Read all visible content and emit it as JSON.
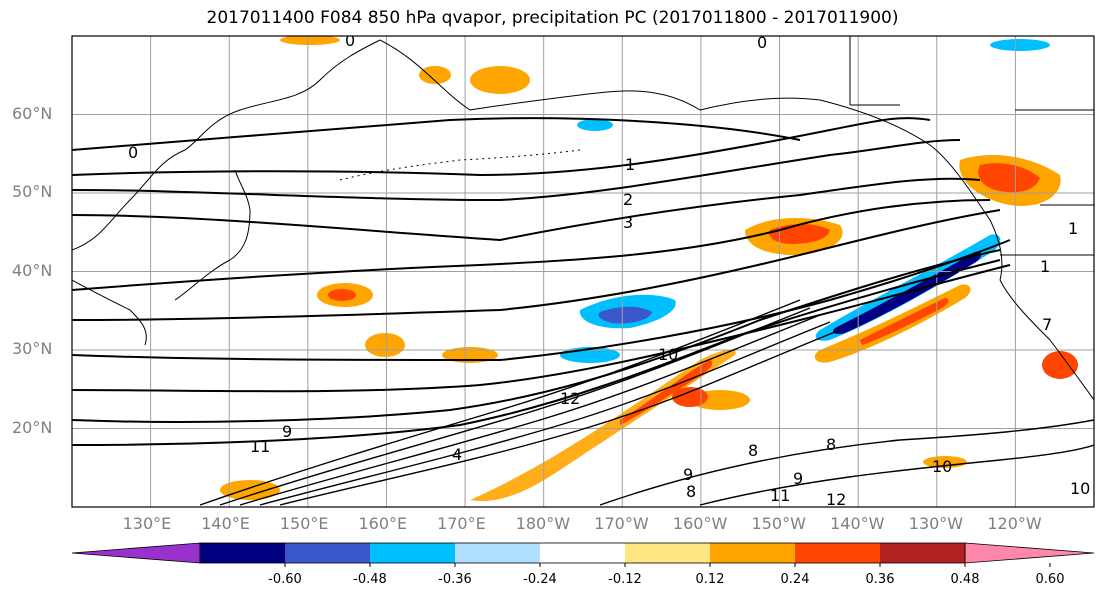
{
  "title": "2017011400 F084 850 hPa qvapor, precipitation PC (2017011800 - 2017011900)",
  "map": {
    "lat_ticks": [
      {
        "label": "60°N",
        "lat": 60
      },
      {
        "label": "50°N",
        "lat": 50
      },
      {
        "label": "40°N",
        "lat": 40
      },
      {
        "label": "30°N",
        "lat": 30
      },
      {
        "label": "20°N",
        "lat": 20
      }
    ],
    "lon_ticks": [
      {
        "label": "130°E",
        "lon": 130
      },
      {
        "label": "140°E",
        "lon": 140
      },
      {
        "label": "150°E",
        "lon": 150
      },
      {
        "label": "160°E",
        "lon": 160
      },
      {
        "label": "170°E",
        "lon": 170
      },
      {
        "label": "180°W",
        "lon": 180
      },
      {
        "label": "170°W",
        "lon": 190
      },
      {
        "label": "160°W",
        "lon": 200
      },
      {
        "label": "150°W",
        "lon": 210
      },
      {
        "label": "140°W",
        "lon": 220
      },
      {
        "label": "130°W",
        "lon": 230
      },
      {
        "label": "120°W",
        "lon": 240
      }
    ],
    "extent": {
      "lon_min": 120,
      "lon_max": 250,
      "lat_min": 10,
      "lat_max": 70
    },
    "contour_labels": [
      "0",
      "0",
      "0",
      "1",
      "2",
      "3",
      "1",
      "1",
      "7",
      "10",
      "12",
      "11",
      "9",
      "8",
      "8",
      "8",
      "9",
      "11",
      "12",
      "10",
      "10",
      "9",
      "4"
    ]
  },
  "colorbar": {
    "ticks": [
      "-0.60",
      "-0.48",
      "-0.36",
      "-0.24",
      "-0.12",
      "0.12",
      "0.24",
      "0.36",
      "0.48",
      "0.60"
    ],
    "colors": [
      "#9932cc",
      "#000080",
      "#3a57cc",
      "#00bfff",
      "#b0e0ff",
      "#ffffff",
      "#ffe680",
      "#ffa500",
      "#ff4500",
      "#b22222",
      "#ff88aa"
    ]
  },
  "colors": {
    "grid": "#a0a0a0",
    "contour": "#000000",
    "axis_label": "#808080"
  }
}
